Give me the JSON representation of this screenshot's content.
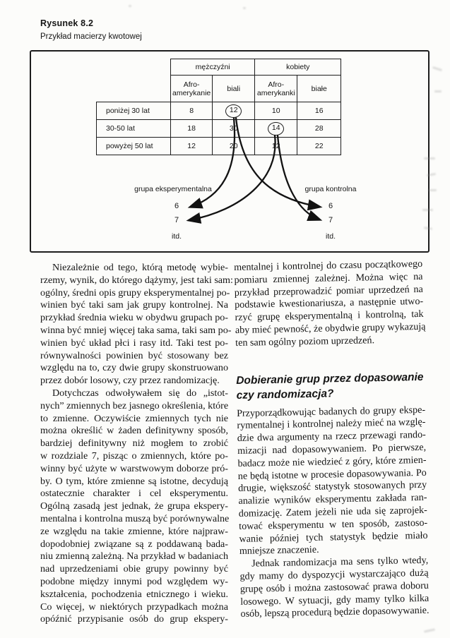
{
  "figure": {
    "label": "Rysunek 8.2",
    "caption": "Przykład macierzy kwotowej",
    "table": {
      "group_headers": [
        "mężczyźni",
        "kobiety"
      ],
      "col_headers": [
        "Afro-amerykanie",
        "biali",
        "Afro-amerykanki",
        "białe"
      ],
      "row_headers": [
        "poniżej 30 lat",
        "30-50 lat",
        "powyżej 50 lat"
      ],
      "values": [
        [
          8,
          12,
          10,
          16
        ],
        [
          18,
          30,
          14,
          28
        ],
        [
          12,
          20,
          12,
          22
        ]
      ],
      "circled": [
        [
          0,
          1
        ],
        [
          1,
          2
        ]
      ]
    },
    "experimental_group": {
      "label": "grupa eksperymentalna",
      "items": [
        "6",
        "7",
        "itd."
      ]
    },
    "control_group": {
      "label": "grupa kontrolna",
      "items": [
        "6",
        "7",
        "itd."
      ]
    }
  },
  "article": {
    "left_column": [
      {
        "indent": true,
        "cont": false,
        "lines": [
          "Niezależnie od tego, którą metodę wybie-",
          "rzemy, wynik, do którego dążymy, jest taki sam:",
          "ogólny, średni opis grupy eksperymentalnej po-",
          "winien być taki sam jak grupy kontrolnej. Na",
          "przykład średnia wieku w obydwu grupach po-",
          "winna być mniej więcej taka sama, taki sam po-",
          "winien być układ płci i rasy itd. Taki test po-",
          "równywalności powinien być stosowany bez",
          "względu na to, czy dwie grupy skonstruowano",
          "przez dobór losowy, czy przez randomizację."
        ]
      },
      {
        "indent": true,
        "cont": true,
        "lines": [
          "Dotychczas odwoływałem się do „istot-",
          "nych” zmiennych bez jasnego określenia, które",
          "to zmienne. Oczywiście zmiennych tych nie",
          "można określić w żaden definitywny sposób,",
          "bardziej definitywny niż mogłem to zrobić",
          "w rozdziale 7, pisząc o zmiennych, które po-",
          "winny być użyte w warstwowym doborze pró-",
          "by. O tym, które zmienne są istotne, decydują",
          "ostatecznie charakter i cel eksperymentu.",
          "Ogólną zasadą jest jednak, że grupa ekspery-",
          "mentalna i kontrolna muszą być porównywalne",
          "ze względu na takie zmienne, które najpraw-",
          "dopodobniej związane są z poddawaną bada-",
          "niu zmienną zależną. Na przykład w badaniach",
          "nad uprzedzeniami obie grupy powinny być",
          "podobne między innymi pod względem wy-",
          "kształcenia, pochodzenia etnicznego i wieku.",
          "Co więcej, w niektórych przypadkach można",
          "opóźnić przypisanie osób do grup ekspery-"
        ]
      }
    ],
    "right_column": [
      {
        "indent": false,
        "cont": false,
        "lines": [
          "mentalnej i kontrolnej do czasu początkowego",
          "pomiaru zmiennej zależnej. Można więc na",
          "przykład przeprowadzić pomiar uprzedzeń na",
          "podstawie kwestionariusza, a następnie utwo-",
          "rzyć grupę eksperymentalną i kontrolną, tak",
          "aby mieć pewność, że obydwie grupy wykazują",
          "ten sam ogólny poziom uprzedzeń."
        ]
      },
      {
        "heading": true,
        "lines": [
          "Dobieranie grup przez dopasowanie",
          "czy randomizacja?"
        ]
      },
      {
        "indent": false,
        "cont": false,
        "lines": [
          "Przyporządkowując badanych do grupy ekspe-",
          "rymentalnej i kontrolnej należy mieć na wzglę-",
          "dzie dwa argumenty na rzecz przewagi rando-",
          "mizacji nad dopasowywaniem. Po pierwsze,",
          "badacz może nie wiedzieć z góry, które zmien-",
          "ne będą istotne w procesie dopasowywania. Po",
          "drugie, większość statystyk stosowanych przy",
          "analizie wyników eksperymentu zakłada ran-",
          "domizację. Zatem jeżeli nie uda się zaprojek-",
          "tować eksperymentu w ten sposób, zastoso-",
          "wanie później tych statystyk będzie miało",
          "mniejsze znaczenie."
        ]
      },
      {
        "indent": true,
        "cont": false,
        "lines": [
          "Jednak randomizacja ma sens tylko wtedy,",
          "gdy mamy do dyspozycji wystarczająco dużą",
          "grupę osób i można zastosować prawa doboru",
          "losowego. W sytuacji, gdy mamy tylko kilka",
          "osób, lepszą procedurą będzie dopasowywanie."
        ]
      }
    ]
  }
}
